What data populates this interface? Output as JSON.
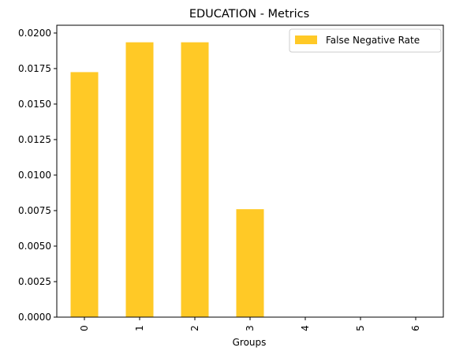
{
  "chart_data": {
    "type": "bar",
    "title": "EDUCATION - Metrics",
    "xlabel": "Groups",
    "ylabel": "",
    "categories": [
      "0",
      "1",
      "2",
      "3",
      "4",
      "5",
      "6"
    ],
    "series": [
      {
        "name": "False Negative Rate",
        "values": [
          0.01725,
          0.01935,
          0.01935,
          0.0076,
          0,
          0,
          0
        ],
        "color": "#FFC926"
      }
    ],
    "ylim": [
      0,
      0.02055
    ],
    "yticks": [
      {
        "value": 0,
        "label": "0.0000"
      },
      {
        "value": 0.0025,
        "label": "0.0025"
      },
      {
        "value": 0.005,
        "label": "0.0050"
      },
      {
        "value": 0.0075,
        "label": "0.0075"
      },
      {
        "value": 0.01,
        "label": "0.0100"
      },
      {
        "value": 0.0125,
        "label": "0.0125"
      },
      {
        "value": 0.015,
        "label": "0.0150"
      },
      {
        "value": 0.0175,
        "label": "0.0175"
      },
      {
        "value": 0.02,
        "label": "0.0200"
      }
    ],
    "grid": false,
    "legend_position": "top-right"
  }
}
